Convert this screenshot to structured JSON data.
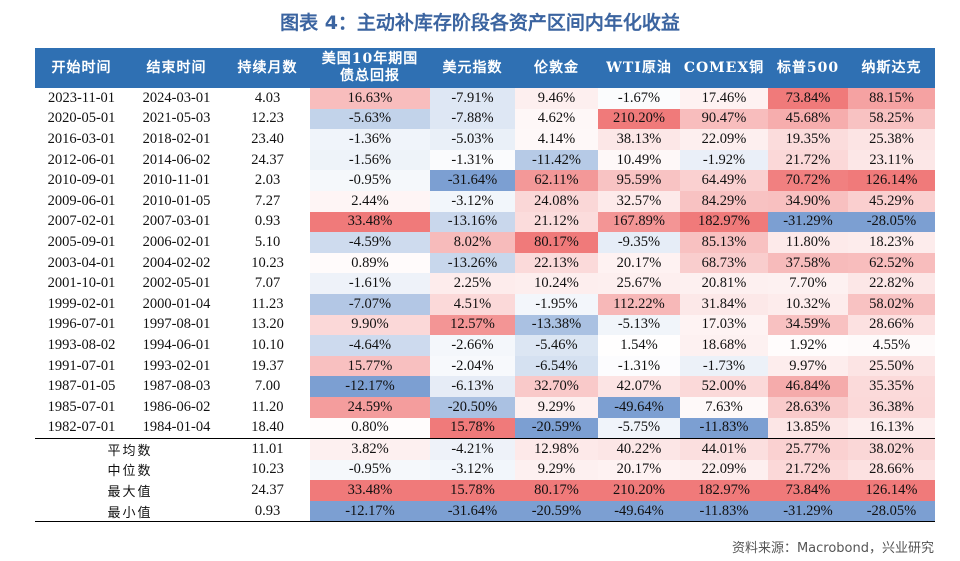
{
  "title": "图表 4：主动补库存阶段各资产区间内年化收益",
  "columns": [
    "开始时间",
    "结束时间",
    "持续月数",
    "美国10年期国债总回报",
    "美元指数",
    "伦敦金",
    "WTI原油",
    "COMEX铜",
    "标普500",
    "纳斯达克"
  ],
  "rows": [
    [
      "2023-11-01",
      "2024-03-01",
      "4.03",
      "16.63%",
      "-7.91%",
      "9.46%",
      "-1.67%",
      "17.46%",
      "73.84%",
      "88.15%"
    ],
    [
      "2020-05-01",
      "2021-05-03",
      "12.23",
      "-5.63%",
      "-7.88%",
      "4.62%",
      "210.20%",
      "90.47%",
      "45.68%",
      "58.25%"
    ],
    [
      "2016-03-01",
      "2018-02-01",
      "23.40",
      "-1.36%",
      "-5.03%",
      "4.14%",
      "38.13%",
      "22.09%",
      "19.35%",
      "25.38%"
    ],
    [
      "2012-06-01",
      "2014-06-02",
      "24.37",
      "-1.56%",
      "-1.31%",
      "-11.42%",
      "10.49%",
      "-1.92%",
      "21.72%",
      "23.11%"
    ],
    [
      "2010-09-01",
      "2010-11-01",
      "2.03",
      "-0.95%",
      "-31.64%",
      "62.11%",
      "95.59%",
      "64.49%",
      "70.72%",
      "126.14%"
    ],
    [
      "2009-06-01",
      "2010-01-05",
      "7.27",
      "2.44%",
      "-3.12%",
      "24.08%",
      "32.57%",
      "84.29%",
      "34.90%",
      "45.29%"
    ],
    [
      "2007-02-01",
      "2007-03-01",
      "0.93",
      "33.48%",
      "-13.16%",
      "21.12%",
      "167.89%",
      "182.97%",
      "-31.29%",
      "-28.05%"
    ],
    [
      "2005-09-01",
      "2006-02-01",
      "5.10",
      "-4.59%",
      "8.02%",
      "80.17%",
      "-9.35%",
      "85.13%",
      "11.80%",
      "18.23%"
    ],
    [
      "2003-04-01",
      "2004-02-02",
      "10.23",
      "0.89%",
      "-13.26%",
      "22.13%",
      "20.17%",
      "68.73%",
      "37.58%",
      "62.52%"
    ],
    [
      "2001-10-01",
      "2002-05-01",
      "7.07",
      "-1.61%",
      "2.25%",
      "10.24%",
      "25.67%",
      "20.81%",
      "7.70%",
      "22.82%"
    ],
    [
      "1999-02-01",
      "2000-01-04",
      "11.23",
      "-7.07%",
      "4.51%",
      "-1.95%",
      "112.22%",
      "31.84%",
      "10.32%",
      "58.02%"
    ],
    [
      "1996-07-01",
      "1997-08-01",
      "13.20",
      "9.90%",
      "12.57%",
      "-13.38%",
      "-5.13%",
      "17.03%",
      "34.59%",
      "28.66%"
    ],
    [
      "1993-08-02",
      "1994-06-01",
      "10.10",
      "-4.64%",
      "-2.66%",
      "-5.46%",
      "1.54%",
      "18.68%",
      "1.92%",
      "4.55%"
    ],
    [
      "1991-07-01",
      "1993-02-01",
      "19.37",
      "15.77%",
      "-2.04%",
      "-6.54%",
      "-1.31%",
      "-1.73%",
      "9.97%",
      "25.50%"
    ],
    [
      "1987-01-05",
      "1987-08-03",
      "7.00",
      "-12.17%",
      "-6.13%",
      "32.70%",
      "42.07%",
      "52.00%",
      "46.84%",
      "35.35%"
    ],
    [
      "1985-07-01",
      "1986-06-02",
      "11.20",
      "24.59%",
      "-20.50%",
      "9.29%",
      "-49.64%",
      "7.63%",
      "28.63%",
      "36.38%"
    ],
    [
      "1982-07-01",
      "1984-01-04",
      "18.40",
      "0.80%",
      "15.78%",
      "-20.59%",
      "-5.75%",
      "-11.83%",
      "13.85%",
      "16.13%"
    ]
  ],
  "stats": [
    {
      "label": "平均数",
      "values": [
        "11.01",
        "3.82%",
        "-4.21%",
        "12.98%",
        "40.22%",
        "44.01%",
        "25.77%",
        "38.02%"
      ]
    },
    {
      "label": "中位数",
      "values": [
        "10.23",
        "-0.95%",
        "-3.12%",
        "9.29%",
        "20.17%",
        "22.09%",
        "21.72%",
        "28.66%"
      ]
    },
    {
      "label": "最大值",
      "values": [
        "24.37",
        "33.48%",
        "15.78%",
        "80.17%",
        "210.20%",
        "182.97%",
        "73.84%",
        "126.14%"
      ]
    },
    {
      "label": "最小值",
      "values": [
        "0.93",
        "-12.17%",
        "-31.64%",
        "-20.59%",
        "-49.64%",
        "-11.83%",
        "-31.29%",
        "-28.05%"
      ]
    }
  ],
  "colors": {
    "header_bg": "#2f70b3",
    "positive": "#f07a7a",
    "negative": "#7c9fd2",
    "title": "#3b64a0"
  },
  "source": "资料来源：Macrobond，兴业研究"
}
